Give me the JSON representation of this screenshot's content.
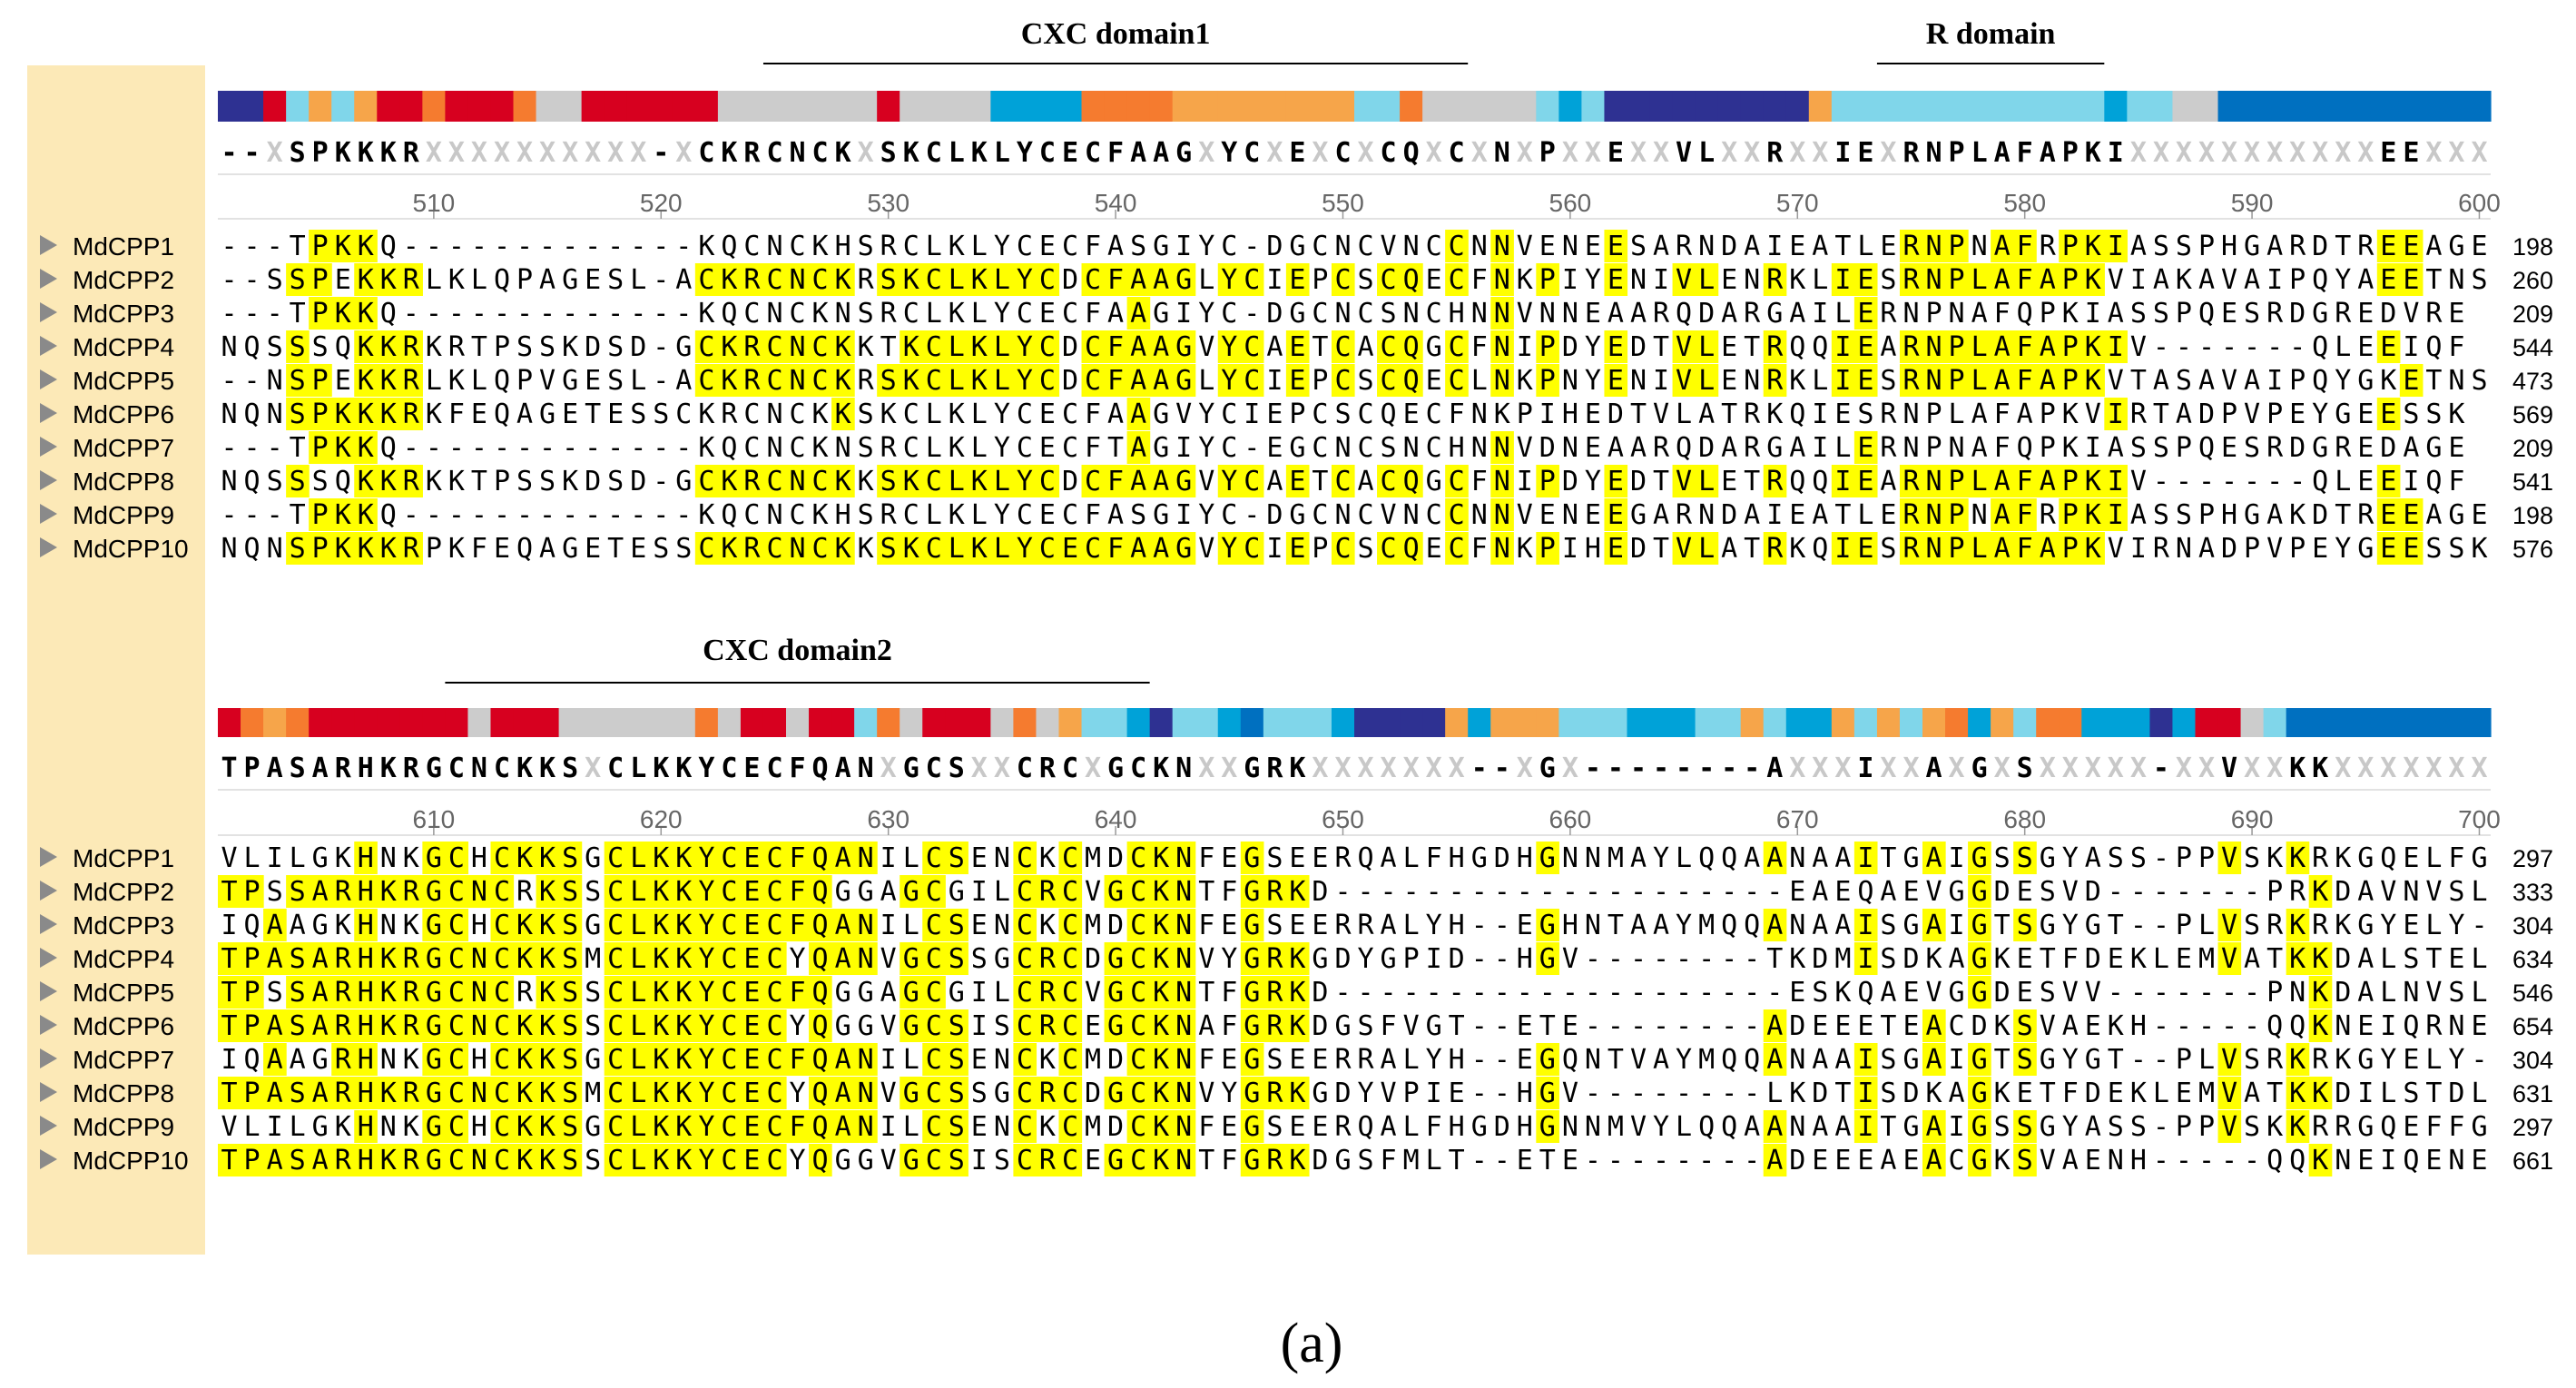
{
  "blocks": [
    {
      "domains": [
        {
          "label": "CXC domain1",
          "start": 525,
          "end": 555
        },
        {
          "label": "R domain",
          "start": 574,
          "end": 583
        }
      ],
      "start": 501,
      "ticks": [
        510,
        520,
        530,
        540,
        550,
        560,
        570,
        580,
        590,
        600
      ],
      "conservation": "1163434665666577666666777777767777222255554444444433577777323111111111433333333333323377",
      "consensus": "--XSPKKKRXXXXXXXXXX-XCKRCNCKXSKCLKLYCECFAAGXYCXEXCXCQXCXNXPXXEXXVLXXRXXIEXRNPLAFAPKIXXXXXXXXXXXEEXXX",
      "sequences": [
        {
          "name": "MdCPP1",
          "seq": "---TPKKQ-------------KQCNCKHSRCLKLYCECFASGIYC-DGCNCVNCCNNVENEESARNDAIEATLERNPNAFRPKIASSPHGARDTREEAGE",
          "end": "198"
        },
        {
          "name": "MdCPP2",
          "seq": "--SSPEKKRLKLQPAGESL-ACKRCNCKRSKCLKLYCDCFAAGLYCIEPCSCQECFNKPIYENIVLENRKLIESRNPLAFAPKVIAKAVAIPQYAEETNS",
          "end": "260"
        },
        {
          "name": "MdCPP3",
          "seq": "---TPKKQ-------------KQCNCKNSRCLKLYCECFAAGIYC-DGCNCSNCHNNVNNEAARQDARGAILERNPNAFQPKIASSPQESRDGREDVRE",
          "end": "209"
        },
        {
          "name": "MdCPP4",
          "seq": "NQSSSQKKRKRTPSSKDSD-GCKRCNCKKTKCLKLYCDCFAAGVYCAETCACQGCFNIPDYEDTVLETRQQIEARNPLAFAPKIV-------QLEEIQF",
          "end": "544"
        },
        {
          "name": "MdCPP5",
          "seq": "--NSPEKKRLKLQPVGESL-ACKRCNCKRSKCLKLYCDCFAAGLYCIEPCSCQECLNKPNYENIVLENRKLIESRNPLAFAPKVTASAVAIPQYGKETNS",
          "end": "473"
        },
        {
          "name": "MdCPP6",
          "seq": "NQNSPKKKRKFEQAGETESSCKRCNCKKSKCLKLYCECFAAGVYCIEPCSCQECFNKPIHEDTVLATRKQIESRNPLAFAPKVIRTADPVPEYGEESSK",
          "end": "569"
        },
        {
          "name": "MdCPP7",
          "seq": "---TPKKQ-------------KQCNCKNSRCLKLYCECFTAGIYC-EGCNCSNCHNNVDNEAARQDARGAILERNPNAFQPKIASSPQESRDGREDAGE",
          "end": "209"
        },
        {
          "name": "MdCPP8",
          "seq": "NQSSSQKKRKKTPSSKDSD-GCKRCNCKKSKCLKLYCDCFAAGVYCAETCACQGCFNIPDYEDTVLETRQQIEARNPLAFAPKIV-------QLEEIQF",
          "end": "541"
        },
        {
          "name": "MdCPP9",
          "seq": "---TPKKQ-------------KQCNCKHSRCLKLYCECFASGIYC-DGCNCVNCCNNVENEEGARNDAIEATLERNPNAFRPKIASSPHGAKDTREEAGE",
          "end": "198"
        },
        {
          "name": "MdCPP10",
          "seq": "NQNSPKKKRPKFEQAGETESSCKRCNCKKSKCLKLYCECFAAGVYCIEPCSCQECFNKPIHEDTVLATRKQIESRNPLAFAPKVIRNADPVPEYGEESSK",
          "end": "576"
        }
      ]
    },
    {
      "domains": [
        {
          "label": "CXC domain2",
          "start": 611,
          "end": 641
        }
      ],
      "start": 601,
      "ticks": [
        610,
        620,
        630,
        640,
        650,
        660,
        670,
        680,
        690,
        700
      ],
      "conservation": "6545666666676667777775766766357666757433213320333211114244433322233432243434524355222126673",
      "consensus": "TPASARHKRGCNCKKSXCLKKYCECFQANXGCSXXCRCXGCKNXXGRKXXXXXXX--XGX--------AXXXIXXAXGXSXXXXX-XXVXXKKXXXXXXX",
      "sequences": [
        {
          "name": "MdCPP1",
          "seq": "VLILGKHNKGCHCKKSGCLKKYCECFQANILCSENCKCMDCKNFEGSEERQALFHGDHGNNMAYLQQAANAAITGAIGSSGYASS-PPVSKKRKGQELFG",
          "end": "297"
        },
        {
          "name": "MdCPP2",
          "seq": "TPSSARHKRGCNCRKSSCLKKYCECFQGGAGCGILCRCVGCKNTFGRKD--------------------EAEQAEVGGDESVD-------PRKDAVNVSL",
          "end": "333"
        },
        {
          "name": "MdCPP3",
          "seq": "IQAAGKHNKGCHCKKSGCLKKYCECFQANILCSENCKCMDCKNFEGSEERRALYH--EGHNTAAYMQQANAAISGAIGTSGYGT--PLVSRKRKGYELY-",
          "end": "304"
        },
        {
          "name": "MdCPP4",
          "seq": "TPASARHKRGCNCKKSMCLKKYCECYQANVGCSSGCRCDGCKNVYGRKGDYGPID--HGV--------TKDMISDKAGKETFDEKLEMVATKKDALSTEL",
          "end": "634"
        },
        {
          "name": "MdCPP5",
          "seq": "TPSSARHKRGCNCRKSSCLKKYCECFQGGAGCGILCRCVGCKNTFGRKD--------------------ESKQAEVGGDESVV-------PNKDALNVSL",
          "end": "546"
        },
        {
          "name": "MdCPP6",
          "seq": "TPASARHKRGCNCKKSSCLKKYCECYQGGVGCSISCRCEGCKNAFGRKDGSFVGT--ETE--------ADEEETEACDKSVAEKH-----QQKNEIQRNE",
          "end": "654"
        },
        {
          "name": "MdCPP7",
          "seq": "IQAAGRHNKGCHCKKSGCLKKYCECFQANILCSENCKCMDCKNFEGSEERRALYH--EGQNTVAYMQQANAAISGAIGTSGYGT--PLVSRKRKGYELY-",
          "end": "304"
        },
        {
          "name": "MdCPP8",
          "seq": "TPASARHKRGCNCKKSMCLKKYCECYQANVGCSSGCRCDGCKNVYGRKGDYVPIE--HGV--------LKDTISDKAGKETFDEKLEMVATKKDILSTDL",
          "end": "631"
        },
        {
          "name": "MdCPP9",
          "seq": "VLILGKHNKGCHCKKSGCLKKYCECFQANILCSENCKCMDCKNFEGSEERQALFHGDHGNNMVYLQQAANAAITGAIGSSGYASS-PPVSKKRRGQEFFG",
          "end": "297"
        },
        {
          "name": "MdCPP10",
          "seq": "TPASARHKRGCNCKKSSCLKKYCECYQGGVGCSISCRCEGCKNTFGRKDGSFMLT--ETE--------ADEEEAEACGKSVAENH-----QQKNEIQENE",
          "end": "661"
        }
      ]
    }
  ],
  "caption": "(a)",
  "colors": {
    "highlight": "#ffff00",
    "namePanel": "#fce9b7",
    "gap": "#bbbbbb",
    "cons": [
      "#0070c0",
      "#2e3192",
      "#00a2d8",
      "#80d6ea",
      "#f6a54a",
      "#f57b2f",
      "#d7001f"
    ]
  },
  "icons": {
    "row_marker": "triangle-right-icon"
  }
}
